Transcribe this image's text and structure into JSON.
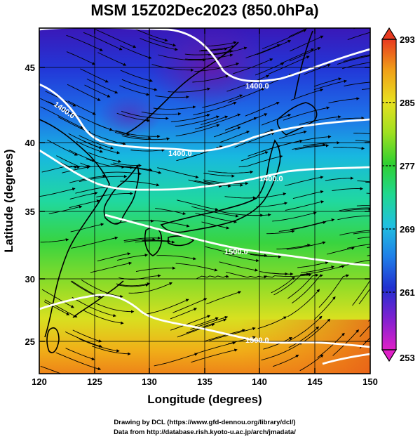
{
  "map": {
    "title": "MSM 15Z02Dec2023 (850.0hPa)",
    "x_axis": {
      "label": "Longitude (degrees)",
      "range": [
        120,
        150
      ],
      "ticks": [
        120,
        125,
        130,
        135,
        140,
        145,
        150
      ],
      "tick_labels": [
        "120",
        "125",
        "130",
        "135",
        "140",
        "145",
        "150"
      ]
    },
    "y_axis": {
      "label": "Latitude  (degrees)",
      "range": [
        22.5,
        48
      ],
      "ticks": [
        25,
        30,
        35,
        40,
        45
      ],
      "tick_labels": [
        "25",
        "30",
        "35",
        "40",
        "45"
      ]
    },
    "field": "temperature",
    "colorbar": {
      "min": 253,
      "max": 293,
      "tick_labels": [
        "293",
        "285",
        "277",
        "269",
        "261",
        "253"
      ],
      "colors_low_to_high": [
        "#e020c8",
        "#8020d0",
        "#2030d0",
        "#1f7fe8",
        "#20c0e0",
        "#20d890",
        "#30d030",
        "#a0e020",
        "#e8e020",
        "#f0a018",
        "#e83a20"
      ],
      "extend": "both"
    },
    "contours": [
      {
        "label": "1400.0"
      },
      {
        "label": "1400.0"
      },
      {
        "label": "1400.0"
      },
      {
        "label": "1400.0"
      },
      {
        "label": "1500.0"
      },
      {
        "label": "1500.0"
      }
    ],
    "credits": [
      "Drawing by DCL (https://www.gfd-dennou.org/library/dcl/)",
      "Data from http://database.rish.kyoto-u.ac.jp/arch/jmadata/"
    ]
  }
}
